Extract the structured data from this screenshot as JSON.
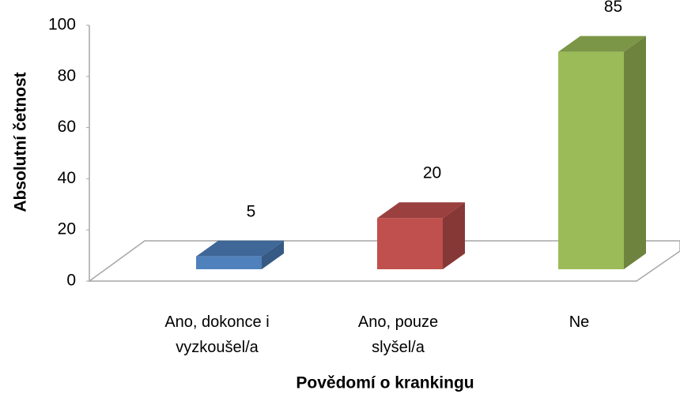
{
  "chart_data": {
    "type": "bar3d",
    "x_label": "Povědomí o krankingu",
    "y_label": "Absolutní  četnost",
    "categories": [
      "Ano, dokonce i vyzkoušel/a",
      "Ano, pouze slyšel/a",
      "Ne"
    ],
    "values": [
      5,
      20,
      85
    ],
    "colors": [
      "#4f81bd",
      "#c0504d",
      "#9bbb59"
    ],
    "ylim": [
      0,
      100
    ],
    "yticks": [
      0,
      20,
      40,
      60,
      80,
      100
    ]
  }
}
